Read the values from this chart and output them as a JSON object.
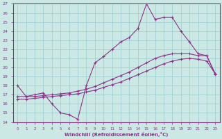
{
  "xlabel": "Windchill (Refroidissement éolien,°C)",
  "xlim_min": -0.5,
  "xlim_max": 23.5,
  "ylim_min": 14,
  "ylim_max": 27,
  "xticks": [
    0,
    1,
    2,
    3,
    4,
    5,
    6,
    7,
    8,
    9,
    10,
    11,
    12,
    13,
    14,
    15,
    16,
    17,
    18,
    19,
    20,
    21,
    22,
    23
  ],
  "yticks": [
    14,
    15,
    16,
    17,
    18,
    19,
    20,
    21,
    22,
    23,
    24,
    25,
    26,
    27
  ],
  "bg_color": "#cce8e4",
  "line_color": "#883388",
  "grid_color": "#99cccc",
  "line1_x": [
    0,
    1,
    2,
    3,
    4,
    5,
    6,
    7,
    8,
    9,
    10,
    11,
    12,
    13,
    14,
    15,
    16,
    17,
    18,
    19,
    20,
    21,
    22,
    23
  ],
  "line1_y": [
    18.0,
    16.8,
    17.0,
    17.2,
    16.0,
    15.0,
    14.8,
    14.3,
    18.0,
    20.5,
    21.2,
    22.0,
    22.8,
    23.3,
    24.3,
    27.0,
    25.3,
    25.5,
    25.5,
    24.0,
    22.8,
    21.5,
    21.3,
    19.2
  ],
  "line2_x": [
    0,
    1,
    2,
    3,
    4,
    5,
    6,
    7,
    8,
    9,
    10,
    11,
    12,
    13,
    14,
    15,
    16,
    17,
    18,
    19,
    20,
    21,
    22,
    23
  ],
  "line2_y": [
    16.8,
    16.8,
    16.8,
    16.9,
    17.0,
    17.1,
    17.2,
    17.4,
    17.6,
    17.9,
    18.3,
    18.7,
    19.1,
    19.5,
    20.0,
    20.5,
    21.0,
    21.3,
    21.5,
    21.5,
    21.5,
    21.3,
    21.3,
    19.3
  ],
  "line3_x": [
    0,
    1,
    2,
    3,
    4,
    5,
    6,
    7,
    8,
    9,
    10,
    11,
    12,
    13,
    14,
    15,
    16,
    17,
    18,
    19,
    20,
    21,
    22,
    23
  ],
  "line3_y": [
    16.5,
    16.5,
    16.6,
    16.7,
    16.8,
    16.9,
    17.0,
    17.1,
    17.3,
    17.5,
    17.8,
    18.1,
    18.4,
    18.8,
    19.2,
    19.6,
    20.0,
    20.4,
    20.7,
    20.9,
    21.0,
    20.9,
    20.7,
    19.3
  ]
}
